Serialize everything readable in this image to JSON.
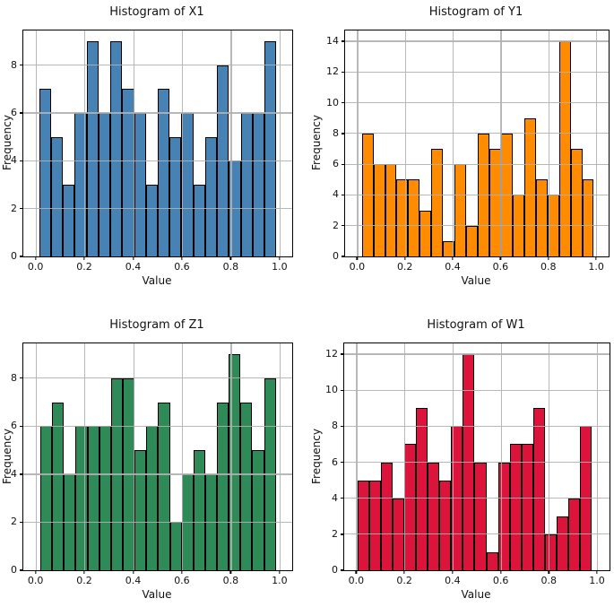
{
  "figure": {
    "rows": 2,
    "cols": 2
  },
  "chart_data": [
    {
      "type": "bar",
      "subtype": "histogram",
      "title": "Histogram of X1",
      "xlabel": "Value",
      "ylabel": "Frequency",
      "bar_color": "#4682B4",
      "edge_color": "#000000",
      "grid": true,
      "bins": 20,
      "bin_start": 0.015,
      "bin_end": 0.987,
      "frequencies": [
        7,
        5,
        3,
        6,
        9,
        6,
        9,
        7,
        6,
        3,
        7,
        5,
        6,
        3,
        5,
        8,
        4,
        6,
        6,
        9
      ],
      "xticks": [
        0.0,
        0.2,
        0.4,
        0.6,
        0.8,
        1.0
      ],
      "yticks": [
        0,
        2,
        4,
        6,
        8
      ],
      "xlim": [
        -0.05,
        1.052
      ],
      "ylim": [
        0,
        9.45
      ]
    },
    {
      "type": "bar",
      "subtype": "histogram",
      "title": "Histogram of Y1",
      "xlabel": "Value",
      "ylabel": "Frequency",
      "bar_color": "#FF8C00",
      "edge_color": "#000000",
      "grid": true,
      "bins": 20,
      "bin_start": 0.02,
      "bin_end": 0.99,
      "frequencies": [
        8,
        6,
        6,
        5,
        5,
        3,
        7,
        1,
        6,
        2,
        8,
        7,
        8,
        4,
        9,
        5,
        4,
        14,
        7,
        5
      ],
      "xticks": [
        0.0,
        0.2,
        0.4,
        0.6,
        0.8,
        1.0
      ],
      "yticks": [
        0,
        2,
        4,
        6,
        8,
        10,
        12,
        14
      ],
      "xlim": [
        -0.05,
        1.052
      ],
      "ylim": [
        0,
        14.7
      ]
    },
    {
      "type": "bar",
      "subtype": "histogram",
      "title": "Histogram of Z1",
      "xlabel": "Value",
      "ylabel": "Frequency",
      "bar_color": "#2E8B57",
      "edge_color": "#000000",
      "grid": true,
      "bins": 20,
      "bin_start": 0.02,
      "bin_end": 0.985,
      "frequencies": [
        6,
        7,
        4,
        6,
        6,
        6,
        8,
        8,
        5,
        6,
        7,
        2,
        4,
        5,
        4,
        7,
        9,
        7,
        5,
        8
      ],
      "xticks": [
        0.0,
        0.2,
        0.4,
        0.6,
        0.8,
        1.0
      ],
      "yticks": [
        0,
        2,
        4,
        6,
        8
      ],
      "xlim": [
        -0.05,
        1.052
      ],
      "ylim": [
        0,
        9.45
      ]
    },
    {
      "type": "bar",
      "subtype": "histogram",
      "title": "Histogram of W1",
      "xlabel": "Value",
      "ylabel": "Frequency",
      "bar_color": "#DC143C",
      "edge_color": "#000000",
      "grid": true,
      "bins": 20,
      "bin_start": 0.005,
      "bin_end": 0.978,
      "frequencies": [
        5,
        5,
        6,
        4,
        7,
        9,
        6,
        5,
        8,
        12,
        6,
        1,
        6,
        7,
        7,
        9,
        2,
        3,
        4,
        8
      ],
      "xticks": [
        0.0,
        0.2,
        0.4,
        0.6,
        0.8,
        1.0
      ],
      "yticks": [
        0,
        2,
        4,
        6,
        8,
        10,
        12
      ],
      "xlim": [
        -0.05,
        1.052
      ],
      "ylim": [
        0,
        12.6
      ]
    }
  ]
}
